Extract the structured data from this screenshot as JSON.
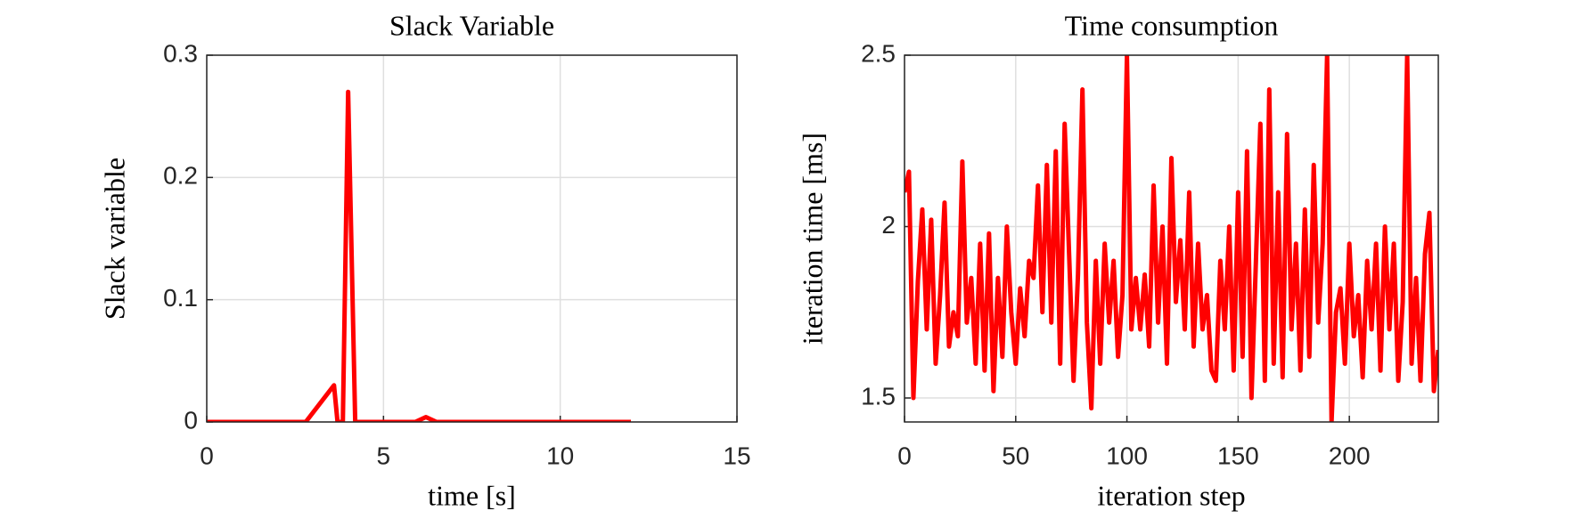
{
  "chart_data": [
    {
      "type": "line",
      "title": "Slack Variable",
      "xlabel": "time [s]",
      "ylabel": "Slack variable",
      "xlim": [
        0,
        15
      ],
      "xticks": [
        0,
        5,
        10,
        15
      ],
      "ylim": [
        0,
        0.3
      ],
      "yticks": [
        0,
        0.1,
        0.2,
        0.3
      ],
      "grid": true,
      "series": [
        {
          "color": "#ff0000",
          "x": [
            0,
            2.8,
            3.6,
            3.7,
            3.85,
            4.0,
            4.2,
            5.9,
            6.2,
            6.5,
            12
          ],
          "values": [
            0,
            0,
            0.03,
            0,
            0,
            0.27,
            0,
            0,
            0.004,
            0,
            0
          ]
        }
      ]
    },
    {
      "type": "line",
      "title": "Time consumption",
      "xlabel": "iteration step",
      "ylabel": "iteration time [ms]",
      "xlim": [
        0,
        240
      ],
      "xticks": [
        0,
        50,
        100,
        150,
        200
      ],
      "ylim": [
        1.43,
        2.5
      ],
      "yticks": [
        1.5,
        2,
        2.5
      ],
      "grid": true,
      "series": [
        {
          "color": "#ff0000",
          "x": [
            0,
            2,
            4,
            6,
            8,
            10,
            12,
            14,
            16,
            18,
            20,
            22,
            24,
            26,
            28,
            30,
            32,
            34,
            36,
            38,
            40,
            42,
            44,
            46,
            48,
            50,
            52,
            54,
            56,
            58,
            60,
            62,
            64,
            66,
            68,
            70,
            72,
            74,
            76,
            78,
            80,
            82,
            84,
            86,
            88,
            90,
            92,
            94,
            96,
            98,
            100,
            102,
            104,
            106,
            108,
            110,
            112,
            114,
            116,
            118,
            120,
            122,
            124,
            126,
            128,
            130,
            132,
            134,
            136,
            138,
            140,
            142,
            144,
            146,
            148,
            150,
            152,
            154,
            156,
            158,
            160,
            162,
            164,
            166,
            168,
            170,
            172,
            174,
            176,
            178,
            180,
            182,
            184,
            186,
            188,
            190,
            192,
            194,
            196,
            198,
            200,
            202,
            204,
            206,
            208,
            210,
            212,
            214,
            216,
            218,
            220,
            222,
            224,
            226,
            228,
            230,
            232,
            234,
            236,
            238,
            240
          ],
          "values": [
            2.1,
            2.16,
            1.5,
            1.84,
            2.05,
            1.7,
            2.02,
            1.6,
            1.8,
            2.07,
            1.65,
            1.75,
            1.68,
            2.19,
            1.72,
            1.85,
            1.6,
            1.95,
            1.58,
            1.98,
            1.52,
            1.85,
            1.62,
            2.0,
            1.75,
            1.6,
            1.82,
            1.68,
            1.9,
            1.85,
            2.12,
            1.75,
            2.18,
            1.72,
            2.22,
            1.6,
            2.3,
            1.92,
            1.55,
            1.86,
            2.4,
            1.72,
            1.47,
            1.9,
            1.6,
            1.95,
            1.72,
            1.9,
            1.62,
            1.8,
            2.5,
            1.7,
            1.85,
            1.7,
            1.86,
            1.65,
            2.12,
            1.72,
            2.0,
            1.6,
            2.2,
            1.78,
            1.96,
            1.7,
            2.1,
            1.65,
            1.95,
            1.7,
            1.8,
            1.58,
            1.55,
            1.9,
            1.7,
            2.0,
            1.58,
            2.1,
            1.62,
            2.22,
            1.5,
            1.9,
            2.3,
            1.55,
            2.4,
            1.6,
            2.1,
            1.56,
            2.27,
            1.7,
            1.95,
            1.58,
            2.05,
            1.62,
            2.18,
            1.72,
            1.95,
            2.5,
            1.43,
            1.75,
            1.82,
            1.6,
            1.95,
            1.68,
            1.8,
            1.56,
            1.9,
            1.7,
            1.95,
            1.58,
            2.0,
            1.7,
            1.95,
            1.55,
            1.78,
            2.5,
            1.6,
            1.85,
            1.55,
            1.92,
            2.04,
            1.52,
            1.64
          ]
        }
      ]
    }
  ]
}
